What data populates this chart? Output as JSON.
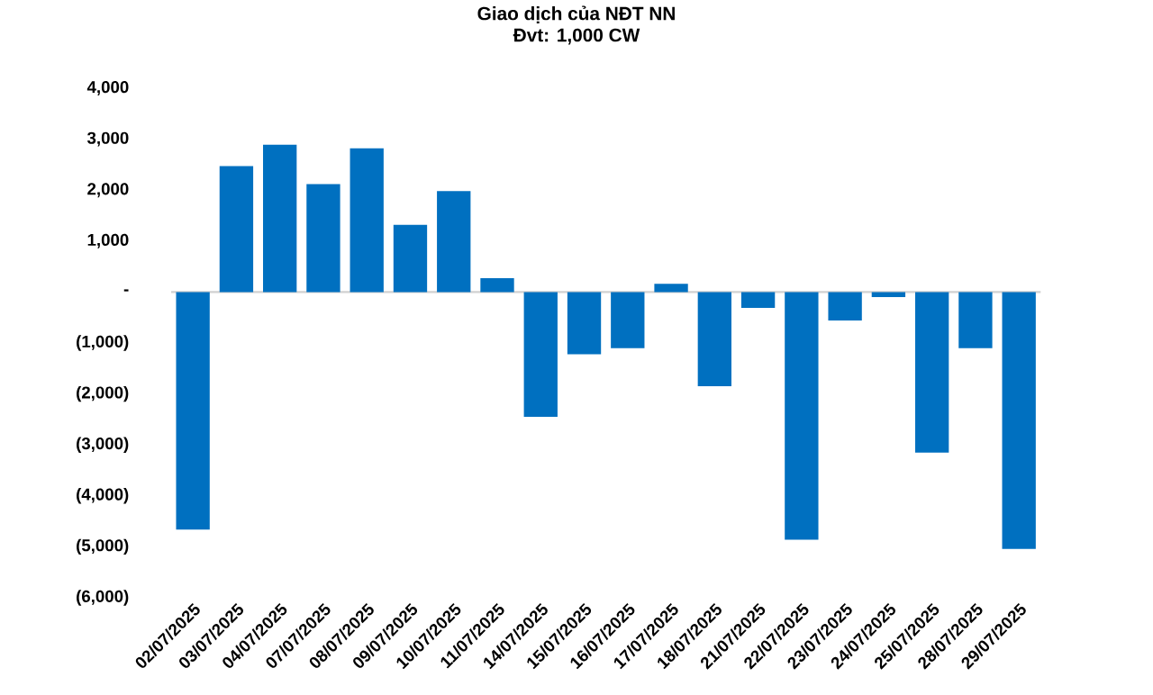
{
  "chart_data": {
    "type": "bar",
    "title": "Giao dịch của NĐT NN",
    "subtitle": "Đvt: 1,000 CW",
    "categories": [
      "02/07/2025",
      "03/07/2025",
      "04/07/2025",
      "07/07/2025",
      "08/07/2025",
      "09/07/2025",
      "10/07/2025",
      "11/07/2025",
      "14/07/2025",
      "15/07/2025",
      "16/07/2025",
      "17/07/2025",
      "18/07/2025",
      "21/07/2025",
      "22/07/2025",
      "23/07/2025",
      "24/07/2025",
      "25/07/2025",
      "28/07/2025",
      "29/07/2025"
    ],
    "values": [
      -4660,
      2470,
      2890,
      2120,
      2820,
      1320,
      1980,
      270,
      -2450,
      -1220,
      -1100,
      160,
      -1850,
      -310,
      -4860,
      -560,
      -100,
      -3150,
      -1100,
      -5040
    ],
    "color": "#0070c0",
    "ylim": [
      -6000,
      4000
    ],
    "yticks": [
      {
        "value": -6000,
        "label": "(6,000)"
      },
      {
        "value": -5000,
        "label": "(5,000)"
      },
      {
        "value": -4000,
        "label": "(4,000)"
      },
      {
        "value": -3000,
        "label": "(3,000)"
      },
      {
        "value": -2000,
        "label": "(2,000)"
      },
      {
        "value": -1000,
        "label": "(1,000)"
      },
      {
        "value": 0,
        "label": "-"
      },
      {
        "value": 1000,
        "label": "1,000"
      },
      {
        "value": 2000,
        "label": "2,000"
      },
      {
        "value": 3000,
        "label": "3,000"
      },
      {
        "value": 4000,
        "label": "4,000"
      }
    ]
  }
}
